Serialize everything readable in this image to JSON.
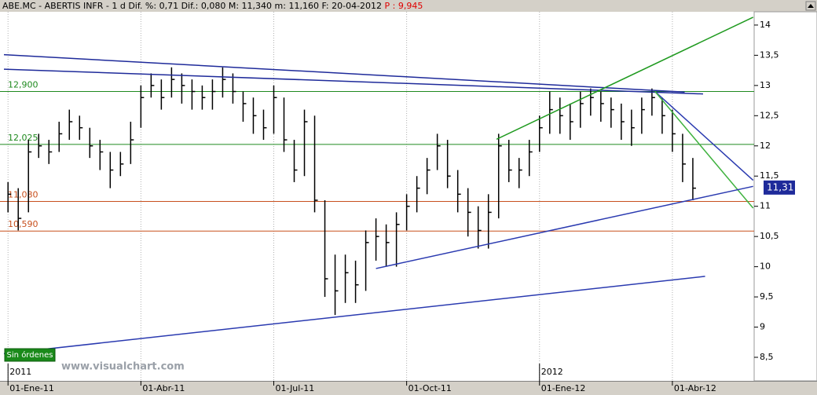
{
  "chart_data": {
    "type": "ohlc",
    "header": {
      "text": "ABE.MC - ABERTIS INFR - 1 d Dif. %: 0,71 Dif.: 0,080 M: 11,340 m: 11,160 F: 20-04-2012",
      "p_text": "P : 9,945"
    },
    "categories": [
      "01-Ene-11",
      null,
      null,
      null,
      null,
      null,
      null,
      null,
      null,
      null,
      null,
      null,
      null,
      "01-Abr-11",
      null,
      null,
      null,
      null,
      null,
      null,
      null,
      null,
      null,
      null,
      null,
      null,
      "01-Jul-11",
      null,
      null,
      null,
      null,
      null,
      null,
      null,
      null,
      null,
      null,
      null,
      null,
      "01-Oct-11",
      null,
      null,
      null,
      null,
      null,
      null,
      null,
      null,
      null,
      null,
      null,
      null,
      "01-Ene-12",
      null,
      null,
      null,
      null,
      null,
      null,
      null,
      null,
      null,
      null,
      null,
      null,
      "01-Abr-12",
      null,
      null
    ],
    "year_markers": [
      {
        "x": 0,
        "label": "2011"
      },
      {
        "x": 52,
        "label": "2012"
      }
    ],
    "series": [
      {
        "color": "#000000",
        "high": [
          11.4,
          11.3,
          12.1,
          12.2,
          12.1,
          12.4,
          12.6,
          12.5,
          12.3,
          12.1,
          11.9,
          11.9,
          12.4,
          13.0,
          13.2,
          13.1,
          13.3,
          13.2,
          13.1,
          13.0,
          13.1,
          13.3,
          13.2,
          12.9,
          12.8,
          12.6,
          13.0,
          12.8,
          12.1,
          12.6,
          12.5,
          11.1,
          10.2,
          10.2,
          10.1,
          10.6,
          10.8,
          10.7,
          10.9,
          11.2,
          11.5,
          11.8,
          12.2,
          12.1,
          11.6,
          11.3,
          11.0,
          11.2,
          12.2,
          12.1,
          11.8,
          12.1,
          12.5,
          12.9,
          12.8,
          12.7,
          12.9,
          12.95,
          12.9,
          12.8,
          12.7,
          12.6,
          12.8,
          12.95,
          12.8,
          12.6,
          12.2,
          11.8
        ],
        "low": [
          10.9,
          10.6,
          10.9,
          11.8,
          11.7,
          11.9,
          12.1,
          12.1,
          11.8,
          11.6,
          11.3,
          11.5,
          11.7,
          12.3,
          12.8,
          12.6,
          12.8,
          12.7,
          12.6,
          12.6,
          12.6,
          12.8,
          12.7,
          12.4,
          12.2,
          12.1,
          12.2,
          11.9,
          11.4,
          11.5,
          10.9,
          9.5,
          9.2,
          9.4,
          9.4,
          9.6,
          10.1,
          10.0,
          10.0,
          10.6,
          10.9,
          11.2,
          11.6,
          11.3,
          10.9,
          10.5,
          10.3,
          10.3,
          10.8,
          11.4,
          11.3,
          11.5,
          11.9,
          12.2,
          12.2,
          12.1,
          12.3,
          12.5,
          12.4,
          12.3,
          12.1,
          12.0,
          12.2,
          12.5,
          12.2,
          11.9,
          11.4,
          11.1
        ],
        "close": [
          11.2,
          10.8,
          11.9,
          12.0,
          11.9,
          12.2,
          12.4,
          12.3,
          12.0,
          11.9,
          11.6,
          11.7,
          12.1,
          12.8,
          13.0,
          12.8,
          13.1,
          13.0,
          12.9,
          12.8,
          12.9,
          13.1,
          12.9,
          12.7,
          12.5,
          12.3,
          12.8,
          12.1,
          11.6,
          12.4,
          11.1,
          9.8,
          9.6,
          9.9,
          9.7,
          10.4,
          10.5,
          10.4,
          10.7,
          11.0,
          11.3,
          11.6,
          12.0,
          11.5,
          11.2,
          10.9,
          10.6,
          10.9,
          12.0,
          11.6,
          11.6,
          11.9,
          12.3,
          12.6,
          12.5,
          12.4,
          12.7,
          12.8,
          12.7,
          12.6,
          12.4,
          12.3,
          12.6,
          12.8,
          12.5,
          12.2,
          11.7,
          11.3
        ]
      }
    ],
    "xlim": [
      -0.4,
      73
    ],
    "ylim": [
      8.11,
      14.22
    ],
    "yticks": [
      {
        "value": 8.5,
        "label": "8,5"
      },
      9,
      {
        "value": 9.5,
        "label": "9,5"
      },
      10,
      {
        "value": 10.5,
        "label": "10,5"
      },
      11,
      {
        "value": 11.5,
        "label": "11,5"
      },
      12,
      {
        "value": 12.5,
        "label": "12,5"
      },
      13,
      {
        "value": 13.5,
        "label": "13,5"
      },
      14
    ],
    "levels": [
      {
        "value": 12.9,
        "label": "12,900",
        "color": "#1f8a1f"
      },
      {
        "value": 12.025,
        "label": "12,025",
        "color": "#1f8a1f"
      },
      {
        "value": 11.08,
        "label": "11,080",
        "color": "#c8501e"
      },
      {
        "value": 10.59,
        "label": "10,590",
        "color": "#c8501e"
      }
    ],
    "trendlines": [
      {
        "color": "#1e2a9a",
        "x": [
          -0.4,
          66.2
        ],
        "y": [
          13.51,
          12.89
        ]
      },
      {
        "color": "#1e2a9a",
        "x": [
          -0.4,
          68
        ],
        "y": [
          13.27,
          12.86
        ]
      },
      {
        "color": "#1f9a1f",
        "x": [
          47.8,
          72.9
        ],
        "y": [
          12.11,
          14.13
        ]
      },
      {
        "color": "#2a3ab0",
        "x": [
          63.3,
          72.9
        ],
        "y": [
          12.9,
          11.43
        ]
      },
      {
        "color": "#3fb23f",
        "x": [
          63.3,
          72.9
        ],
        "y": [
          12.9,
          10.97
        ]
      },
      {
        "color": "#2a3ab0",
        "x": [
          36,
          72.9
        ],
        "y": [
          9.97,
          11.33
        ]
      },
      {
        "color": "#2a3ab0",
        "x": [
          -0.4,
          68.2
        ],
        "y": [
          8.56,
          9.84
        ]
      }
    ],
    "last_price": {
      "value": 11.31,
      "label": "11,31"
    },
    "button": "Sin órdenes",
    "watermark": "www.visualchart.com"
  }
}
